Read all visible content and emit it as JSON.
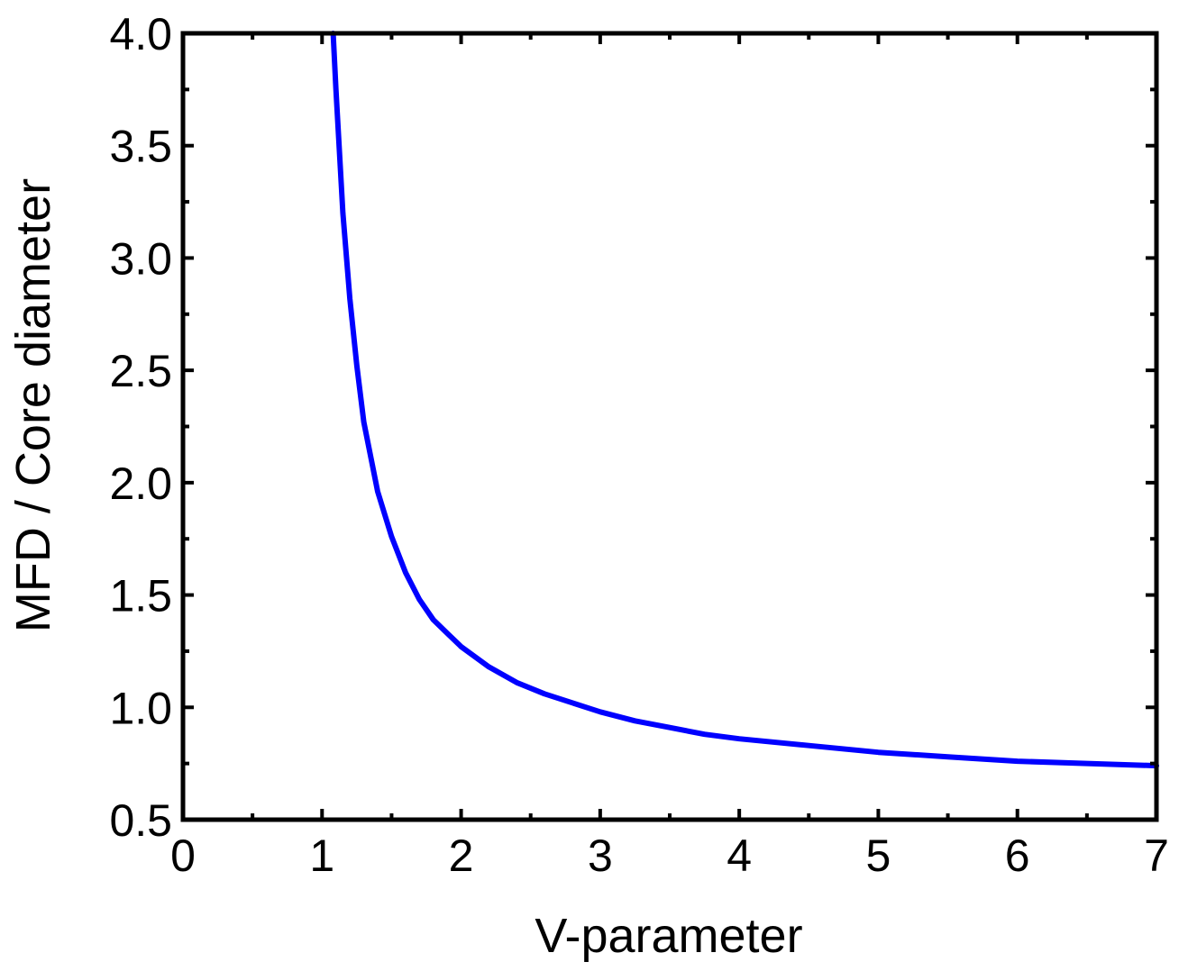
{
  "chart_data": {
    "type": "line",
    "title": "",
    "xlabel": "V-parameter",
    "ylabel": "MFD / Core diameter",
    "xlim": [
      0,
      7
    ],
    "ylim": [
      0.5,
      4.0
    ],
    "x_ticks": [
      "0",
      "1",
      "2",
      "3",
      "4",
      "5",
      "6",
      "7"
    ],
    "y_ticks": [
      "0.5",
      "1.0",
      "1.5",
      "2.0",
      "2.5",
      "3.0",
      "3.5",
      "4.0"
    ],
    "grid": false,
    "legend": "none",
    "colors": {
      "series": "#0000ff",
      "axes": "#000000"
    },
    "series": [
      {
        "x": [
          1.08,
          1.1,
          1.15,
          1.2,
          1.25,
          1.3,
          1.4,
          1.5,
          1.6,
          1.7,
          1.8,
          1.9,
          2.0,
          2.2,
          2.4,
          2.6,
          2.8,
          3.0,
          3.25,
          3.5,
          3.75,
          4.0,
          4.5,
          5.0,
          5.5,
          6.0,
          6.5,
          7.0
        ],
        "y": [
          4.0,
          3.75,
          3.2,
          2.82,
          2.52,
          2.27,
          1.96,
          1.76,
          1.6,
          1.48,
          1.39,
          1.33,
          1.27,
          1.18,
          1.11,
          1.06,
          1.02,
          0.98,
          0.94,
          0.91,
          0.88,
          0.86,
          0.83,
          0.8,
          0.78,
          0.76,
          0.75,
          0.74
        ]
      }
    ]
  }
}
